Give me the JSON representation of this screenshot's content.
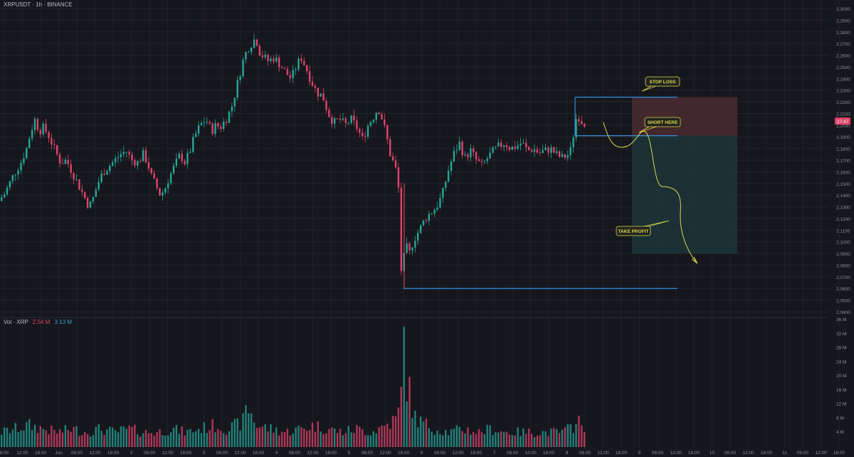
{
  "header": {
    "symbol": "XRPUSDT · 1h · BINANCE"
  },
  "volume_header": {
    "label": "Vol · XRP",
    "down_value": "2.54 M",
    "up_value": "3.13 M"
  },
  "price_badge": {
    "value": "27:47",
    "color": "#e0436d"
  },
  "annotations": {
    "stop_loss": "STOP LOSS",
    "short_here": "SHORT HERE",
    "take_profit": "TAKE PROFIT"
  },
  "colors": {
    "background": "#16171c",
    "up": "#26a69a",
    "down": "#e0436d",
    "level_line": "#2e8fe0",
    "stop_zone": "#4a2a30",
    "profit_zone": "#1e3a3d",
    "annotation": "#d9d94a"
  },
  "chart_data": {
    "type": "candlestick",
    "price_axis": {
      "ticks": [
        "2.3000",
        "2.2900",
        "2.2800",
        "2.2700",
        "2.2600",
        "2.2500",
        "2.2400",
        "2.2300",
        "2.2200",
        "2.2100",
        "2.2000",
        "2.1900",
        "2.1800",
        "2.1700",
        "2.1600",
        "2.1500",
        "2.1400",
        "2.1300",
        "2.1200",
        "2.1100",
        "2.1000",
        "2.0900",
        "2.0800",
        "2.0700",
        "2.0600",
        "2.0500",
        "2.0400"
      ],
      "range": [
        2.04,
        2.3
      ]
    },
    "volume_axis": {
      "ticks": [
        "36 M",
        "32 M",
        "28 M",
        "24 M",
        "20 M",
        "16 M",
        "12 M",
        "8 M",
        "4 M"
      ],
      "range": [
        0,
        36
      ]
    },
    "time_axis": [
      "6:00",
      "12:00",
      "18:00",
      "Jun",
      "06:00",
      "12:00",
      "18:00",
      "2",
      "06:00",
      "12:00",
      "18:00",
      "3",
      "06:00",
      "12:00",
      "18:00",
      "4",
      "06:00",
      "12:00",
      "18:00",
      "5",
      "06:00",
      "12:00",
      "18:00",
      "6",
      "06:00",
      "12:00",
      "18:00",
      "7",
      "06:00",
      "12:00",
      "18:00",
      "8",
      "06:00",
      "12:00",
      "18:00",
      "9",
      "06:00",
      "12:00",
      "18:00",
      "10",
      "06:00",
      "12:00",
      "18:00",
      "11",
      "06:00",
      "12:00",
      "18:00"
    ],
    "price_points": [
      [
        0,
        2.135
      ],
      [
        8,
        2.14
      ],
      [
        16,
        2.15
      ],
      [
        24,
        2.16
      ],
      [
        32,
        2.168
      ],
      [
        40,
        2.18
      ],
      [
        46,
        2.195
      ],
      [
        52,
        2.205
      ],
      [
        58,
        2.195
      ],
      [
        64,
        2.198
      ],
      [
        72,
        2.19
      ],
      [
        80,
        2.178
      ],
      [
        88,
        2.168
      ],
      [
        96,
        2.17
      ],
      [
        104,
        2.16
      ],
      [
        112,
        2.15
      ],
      [
        120,
        2.14
      ],
      [
        128,
        2.13
      ],
      [
        134,
        2.138
      ],
      [
        140,
        2.15
      ],
      [
        148,
        2.16
      ],
      [
        156,
        2.165
      ],
      [
        164,
        2.17
      ],
      [
        172,
        2.175
      ],
      [
        180,
        2.178
      ],
      [
        188,
        2.17
      ],
      [
        196,
        2.168
      ],
      [
        204,
        2.175
      ],
      [
        210,
        2.168
      ],
      [
        216,
        2.155
      ],
      [
        222,
        2.148
      ],
      [
        228,
        2.14
      ],
      [
        234,
        2.145
      ],
      [
        240,
        2.155
      ],
      [
        248,
        2.165
      ],
      [
        256,
        2.175
      ],
      [
        262,
        2.168
      ],
      [
        268,
        2.175
      ],
      [
        276,
        2.19
      ],
      [
        284,
        2.2
      ],
      [
        292,
        2.205
      ],
      [
        300,
        2.195
      ],
      [
        306,
        2.2
      ],
      [
        312,
        2.198
      ],
      [
        320,
        2.205
      ],
      [
        328,
        2.215
      ],
      [
        336,
        2.235
      ],
      [
        344,
        2.255
      ],
      [
        350,
        2.265
      ],
      [
        356,
        2.27
      ],
      [
        362,
        2.275
      ],
      [
        368,
        2.262
      ],
      [
        374,
        2.258
      ],
      [
        380,
        2.255
      ],
      [
        388,
        2.258
      ],
      [
        396,
        2.252
      ],
      [
        404,
        2.245
      ],
      [
        412,
        2.24
      ],
      [
        420,
        2.252
      ],
      [
        426,
        2.258
      ],
      [
        432,
        2.25
      ],
      [
        440,
        2.238
      ],
      [
        448,
        2.228
      ],
      [
        456,
        2.225
      ],
      [
        464,
        2.21
      ],
      [
        472,
        2.202
      ],
      [
        480,
        2.205
      ],
      [
        488,
        2.2
      ],
      [
        496,
        2.205
      ],
      [
        504,
        2.198
      ],
      [
        512,
        2.188
      ],
      [
        520,
        2.2
      ],
      [
        528,
        2.208
      ],
      [
        534,
        2.215
      ],
      [
        540,
        2.205
      ],
      [
        546,
        2.19
      ],
      [
        552,
        2.172
      ],
      [
        558,
        2.165
      ],
      [
        564,
        2.14
      ],
      [
        567,
        2.063
      ],
      [
        572,
        2.098
      ],
      [
        578,
        2.09
      ],
      [
        584,
        2.102
      ],
      [
        592,
        2.11
      ],
      [
        600,
        2.12
      ],
      [
        608,
        2.125
      ],
      [
        616,
        2.13
      ],
      [
        624,
        2.14
      ],
      [
        632,
        2.16
      ],
      [
        640,
        2.175
      ],
      [
        648,
        2.185
      ],
      [
        656,
        2.172
      ],
      [
        664,
        2.178
      ],
      [
        672,
        2.17
      ],
      [
        680,
        2.165
      ],
      [
        688,
        2.172
      ],
      [
        696,
        2.178
      ],
      [
        704,
        2.182
      ],
      [
        712,
        2.185
      ],
      [
        720,
        2.18
      ],
      [
        728,
        2.182
      ],
      [
        736,
        2.185
      ],
      [
        744,
        2.178
      ],
      [
        752,
        2.18
      ],
      [
        760,
        2.176
      ],
      [
        768,
        2.178
      ],
      [
        776,
        2.18
      ],
      [
        784,
        2.175
      ],
      [
        792,
        2.172
      ],
      [
        800,
        2.174
      ],
      [
        806,
        2.18
      ],
      [
        810,
        2.2
      ],
      [
        814,
        2.21
      ],
      [
        818,
        2.205
      ],
      [
        822,
        2.202
      ]
    ],
    "volume_points": [
      [
        0,
        4
      ],
      [
        20,
        5
      ],
      [
        40,
        6
      ],
      [
        60,
        5
      ],
      [
        80,
        4
      ],
      [
        100,
        5
      ],
      [
        120,
        4
      ],
      [
        140,
        5
      ],
      [
        160,
        4
      ],
      [
        180,
        5
      ],
      [
        200,
        4
      ],
      [
        220,
        4
      ],
      [
        240,
        5
      ],
      [
        260,
        4
      ],
      [
        280,
        5
      ],
      [
        300,
        6
      ],
      [
        320,
        5
      ],
      [
        340,
        7
      ],
      [
        346,
        12
      ],
      [
        360,
        6
      ],
      [
        380,
        5
      ],
      [
        400,
        4
      ],
      [
        420,
        5
      ],
      [
        440,
        6
      ],
      [
        460,
        5
      ],
      [
        480,
        4
      ],
      [
        500,
        5
      ],
      [
        520,
        4
      ],
      [
        540,
        6
      ],
      [
        556,
        8
      ],
      [
        562,
        12
      ],
      [
        566,
        34
      ],
      [
        570,
        20
      ],
      [
        576,
        14
      ],
      [
        580,
        9
      ],
      [
        590,
        7
      ],
      [
        610,
        5
      ],
      [
        630,
        4
      ],
      [
        650,
        5
      ],
      [
        670,
        4
      ],
      [
        690,
        5
      ],
      [
        710,
        4
      ],
      [
        730,
        4
      ],
      [
        750,
        4
      ],
      [
        770,
        4
      ],
      [
        790,
        4
      ],
      [
        806,
        6
      ],
      [
        810,
        12
      ],
      [
        814,
        5
      ],
      [
        820,
        4
      ]
    ],
    "levels": {
      "stop_loss": 2.224,
      "entry": 2.191,
      "low": 2.06,
      "take_profit": 2.09
    }
  }
}
